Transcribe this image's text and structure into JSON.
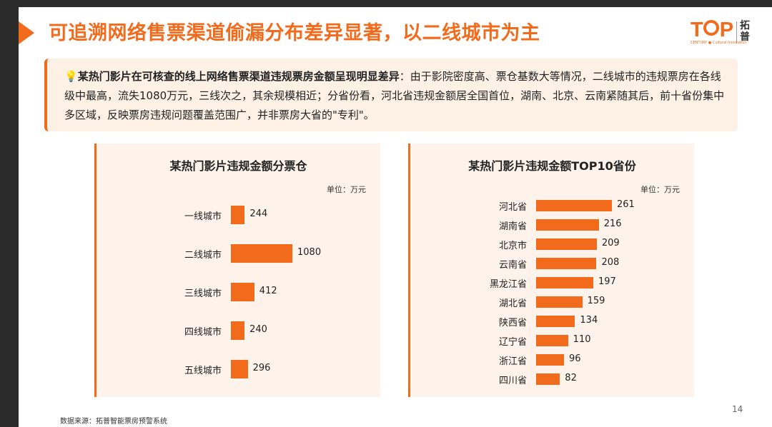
{
  "slide": {
    "title": "可追溯网络售票渠道偷漏分布差异显著，以二线城市为主",
    "page_number": "14",
    "source": "数据来源：拓普智能票房预警系统"
  },
  "logo": {
    "text_before": "T",
    "text_after": "P",
    "cn": "拓普",
    "sub": "CENTURY ● Cultural Innovation"
  },
  "summary": {
    "icon": "lightbulb-icon",
    "bulb_glyph": "💡",
    "bold": "某热门影片在可核查的线上网络售票渠道违规票房金额呈现明显差异",
    "text": "：由于影院密度高、票仓基数大等情况，二线城市的违规票房在各线级中最高，流失1080万元，三线次之，其余规模相近；分省份看，河北省违规金额居全国首位，湖南、北京、云南紧随其后，前十省份集中多区域，反映票房违规问题覆盖范围广，并非票房大省的\"专利\"。"
  },
  "colors": {
    "accent": "#f26b1d",
    "panel_bg": "#fdf3ea",
    "summary_bg": "#fdf1e6"
  },
  "chart_data": [
    {
      "type": "bar",
      "orientation": "horizontal",
      "title": "某热门影片违规金额分票仓",
      "unit": "单位：万元",
      "categories": [
        "一线城市",
        "二线城市",
        "三线城市",
        "四线城市",
        "五线城市"
      ],
      "values": [
        244,
        1080,
        412,
        240,
        296
      ],
      "value_labels": [
        "244",
        "1080",
        "412",
        "240",
        "296"
      ]
    },
    {
      "type": "bar",
      "orientation": "horizontal",
      "title": "某热门影片违规金额TOP10省份",
      "unit": "单位：万元",
      "categories": [
        "河北省",
        "湖南省",
        "北京市",
        "云南省",
        "黑龙江省",
        "湖北省",
        "陕西省",
        "辽宁省",
        "浙江省",
        "四川省"
      ],
      "values": [
        261,
        216,
        209,
        208,
        197,
        159,
        134,
        110,
        96,
        82
      ],
      "value_labels": [
        "261",
        "216",
        "209",
        "208",
        "197",
        "159",
        "134",
        "110",
        "96",
        "82"
      ]
    }
  ]
}
